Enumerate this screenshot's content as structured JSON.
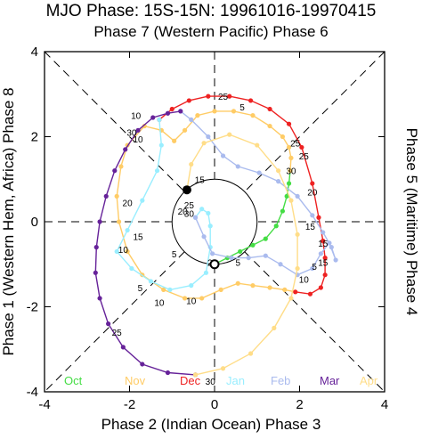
{
  "title": "MJO Phase: 15S-15N: 19961016-19970415",
  "labels": {
    "top": "Phase 7 (Western Pacific) Phase 6",
    "bottom": "Phase 2 (Indian Ocean) Phase 3",
    "left": "Phase 1 (Western Hem, Africa) Phase 8",
    "right": "Phase 5 (Maritime) Phase 4"
  },
  "chart_data": {
    "type": "scatter",
    "title": "MJO Phase: 15S-15N: 19961016-19970415",
    "xlabel": "Phase 2 (Indian Ocean) Phase 3",
    "ylabel": "Phase 1 (Western Hem, Africa) Phase 8",
    "xlim": [
      -4,
      4
    ],
    "ylim": [
      -4,
      4
    ],
    "xticks": [
      "-4",
      "-2",
      "0",
      "2",
      "4"
    ],
    "yticks": [
      "-4",
      "-2",
      "0",
      "2",
      "4"
    ],
    "unit_circle_radius": 1,
    "dashed_diagonals": true,
    "dashed_axes": true,
    "legend_position": "bottom",
    "start_marker": [
      0,
      -1
    ],
    "end_marker": [
      -0.65,
      0.75
    ],
    "series": [
      {
        "name": "Oct",
        "color": "#44dd44",
        "points": [
          [
            0,
            -1
          ],
          [
            0.3,
            -0.85
          ],
          [
            0.6,
            -0.7
          ],
          [
            0.9,
            -0.55
          ],
          [
            1.2,
            -0.4
          ],
          [
            1.45,
            -0.1
          ],
          [
            1.6,
            0.25
          ],
          [
            1.7,
            0.6
          ],
          [
            1.75,
            0.9
          ],
          [
            1.78,
            1.2
          ]
        ]
      },
      {
        "name": "Nov",
        "color": "#ffcc66",
        "points": [
          [
            1.78,
            1.2
          ],
          [
            1.8,
            1.5
          ],
          [
            1.75,
            1.75
          ],
          [
            1.6,
            2.0
          ],
          [
            1.3,
            2.25
          ],
          [
            0.9,
            2.5
          ],
          [
            0.45,
            2.6
          ],
          [
            0,
            2.6
          ],
          [
            -0.4,
            2.5
          ],
          [
            -0.7,
            2.15
          ],
          [
            -0.95,
            1.9
          ],
          [
            -1.25,
            2.15
          ],
          [
            -1.65,
            2.25
          ],
          [
            -2.05,
            1.8
          ],
          [
            -2.2,
            1.3
          ],
          [
            -2.3,
            0.6
          ],
          [
            -2.25,
            0.0
          ],
          [
            -2.05,
            -0.7
          ],
          [
            -1.7,
            -1.25
          ],
          [
            -1.2,
            -1.6
          ],
          [
            -0.7,
            -1.8
          ],
          [
            -0.3,
            -1.8
          ],
          [
            0.15,
            -1.6
          ],
          [
            0.55,
            -1.45
          ],
          [
            0.9,
            -1.5
          ],
          [
            1.3,
            -1.55
          ],
          [
            1.65,
            -1.6
          ],
          [
            1.9,
            -1.65
          ]
        ]
      },
      {
        "name": "Dec",
        "color": "#ee2222",
        "points": [
          [
            1.9,
            -1.65
          ],
          [
            2.25,
            -1.7
          ],
          [
            2.5,
            -1.55
          ],
          [
            2.6,
            -1.25
          ],
          [
            2.6,
            -0.85
          ],
          [
            2.55,
            -0.45
          ],
          [
            2.45,
            0.1
          ],
          [
            2.3,
            0.9
          ],
          [
            2.05,
            1.75
          ],
          [
            1.75,
            2.3
          ],
          [
            1.3,
            2.65
          ],
          [
            0.85,
            2.85
          ],
          [
            0.35,
            2.95
          ],
          [
            -0.15,
            2.95
          ],
          [
            -0.6,
            2.85
          ],
          [
            -1.0,
            2.65
          ],
          [
            -1.3,
            2.4
          ]
        ]
      },
      {
        "name": "Jan",
        "color": "#99eeff",
        "points": [
          [
            -1.3,
            2.4
          ],
          [
            -1.25,
            1.8
          ],
          [
            -1.35,
            1.2
          ],
          [
            -1.7,
            0.5
          ],
          [
            -2.05,
            -0.2
          ],
          [
            -2.3,
            -0.7
          ],
          [
            -1.95,
            -1.1
          ],
          [
            -1.5,
            -1.4
          ],
          [
            -1.05,
            -1.6
          ],
          [
            -0.55,
            -1.5
          ],
          [
            -0.2,
            -1.2
          ],
          [
            -0.1,
            -0.6
          ],
          [
            -0.1,
            -0.1
          ],
          [
            -0.15,
            0.2
          ],
          [
            -0.3,
            0.3
          ],
          [
            -0.45,
            0.1
          ]
        ]
      },
      {
        "name": "Feb",
        "color": "#aabbee",
        "points": [
          [
            -0.45,
            0.1
          ],
          [
            -0.25,
            -0.35
          ],
          [
            -0.05,
            -0.75
          ],
          [
            0.4,
            -0.85
          ],
          [
            0.8,
            -0.85
          ],
          [
            1.2,
            -0.8
          ],
          [
            1.55,
            -1.0
          ],
          [
            1.95,
            -1.25
          ],
          [
            2.3,
            -1.1
          ],
          [
            2.5,
            -0.75
          ],
          [
            2.7,
            -0.5
          ],
          [
            2.85,
            -0.9
          ],
          [
            2.75,
            -0.6
          ],
          [
            2.55,
            -0.25
          ],
          [
            2.3,
            0.15
          ],
          [
            1.95,
            0.6
          ],
          [
            1.5,
            0.95
          ],
          [
            1.05,
            1.15
          ],
          [
            0.55,
            1.3
          ],
          [
            0.2,
            1.55
          ],
          [
            -0.15,
            2.0
          ],
          [
            -0.55,
            2.4
          ],
          [
            -0.8,
            2.6
          ]
        ]
      },
      {
        "name": "Mar",
        "color": "#662299",
        "points": [
          [
            -0.8,
            2.6
          ],
          [
            -1.1,
            2.55
          ],
          [
            -1.45,
            2.45
          ],
          [
            -1.8,
            2.15
          ],
          [
            -2.1,
            1.7
          ],
          [
            -2.35,
            1.2
          ],
          [
            -2.55,
            0.6
          ],
          [
            -2.7,
            0.0
          ],
          [
            -2.78,
            -0.6
          ],
          [
            -2.8,
            -1.2
          ],
          [
            -2.7,
            -1.8
          ],
          [
            -2.5,
            -2.4
          ],
          [
            -2.15,
            -2.95
          ],
          [
            -1.7,
            -3.35
          ],
          [
            -1.1,
            -3.55
          ],
          [
            -0.45,
            -3.6
          ]
        ]
      },
      {
        "name": "Apr",
        "color": "#ffdd88",
        "points": [
          [
            -0.45,
            -3.6
          ],
          [
            0.2,
            -3.45
          ],
          [
            0.85,
            -3.1
          ],
          [
            1.4,
            -2.5
          ],
          [
            1.8,
            -1.8
          ],
          [
            1.95,
            -1.1
          ],
          [
            1.95,
            -0.3
          ],
          [
            1.8,
            0.5
          ],
          [
            1.5,
            1.2
          ],
          [
            1.0,
            1.8
          ],
          [
            0.35,
            2.05
          ],
          [
            -0.25,
            1.85
          ],
          [
            -0.55,
            1.35
          ],
          [
            -0.65,
            0.75
          ]
        ]
      }
    ],
    "day_labels": [
      {
        "text": "5",
        "x": 0.55,
        "y": -0.95
      },
      {
        "text": "20",
        "x": -0.05,
        "y": -0.95
      },
      {
        "text": "25",
        "x": 1.9,
        "y": 1.85
      },
      {
        "text": "30",
        "x": 1.8,
        "y": 1.2
      },
      {
        "text": "25",
        "x": 0.2,
        "y": 2.95
      },
      {
        "text": "5",
        "x": 0.65,
        "y": 2.7
      },
      {
        "text": "10",
        "x": -1.8,
        "y": 1.95
      },
      {
        "text": "15",
        "x": -0.35,
        "y": 1.0
      },
      {
        "text": "20",
        "x": -2.05,
        "y": 0.45
      },
      {
        "text": "15",
        "x": -1.8,
        "y": -0.35
      },
      {
        "text": "10",
        "x": -2.15,
        "y": -0.65
      },
      {
        "text": "5",
        "x": -1.75,
        "y": -1.55
      },
      {
        "text": "10",
        "x": -0.55,
        "y": -1.85
      },
      {
        "text": "25",
        "x": -0.6,
        "y": 0.4
      },
      {
        "text": "20",
        "x": -0.75,
        "y": 0.25
      },
      {
        "text": "30",
        "x": -0.6,
        "y": 0.2
      },
      {
        "text": "5",
        "x": -0.95,
        "y": -0.75
      },
      {
        "text": "10",
        "x": -1.3,
        "y": -1.9
      },
      {
        "text": "25",
        "x": -2.3,
        "y": -2.6
      },
      {
        "text": "30",
        "x": -0.1,
        "y": -3.75
      },
      {
        "text": "30",
        "x": -1.95,
        "y": 2.1
      },
      {
        "text": "10",
        "x": -1.85,
        "y": 2.5
      },
      {
        "text": "25",
        "x": 2.1,
        "y": 1.55
      },
      {
        "text": "20",
        "x": 2.3,
        "y": 0.7
      },
      {
        "text": "15",
        "x": 2.25,
        "y": -0.1
      },
      {
        "text": "10",
        "x": 2.1,
        "y": -1.35
      },
      {
        "text": "5",
        "x": 2.35,
        "y": -1.05
      },
      {
        "text": "15",
        "x": 2.55,
        "y": -0.95
      },
      {
        "text": "15",
        "x": 2.55,
        "y": -0.5
      }
    ]
  }
}
